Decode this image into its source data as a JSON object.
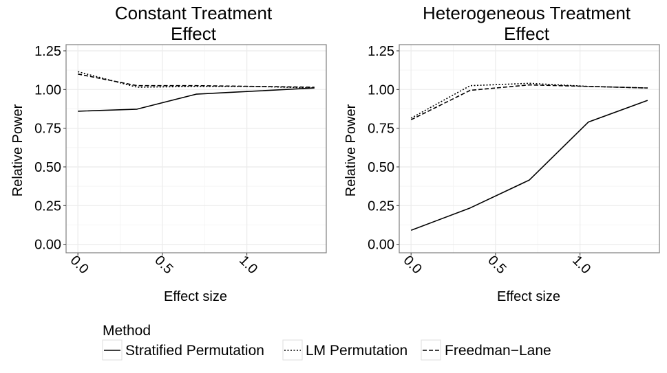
{
  "chart_data": [
    {
      "type": "line",
      "title_lines": [
        "Constant Treatment",
        "Effect"
      ],
      "xlabel": "Effect size",
      "ylabel": "Relative Power",
      "xlim": [
        -0.07,
        1.47
      ],
      "ylim": [
        -0.055,
        1.29
      ],
      "x_ticks": [
        0.0,
        0.5,
        1.0
      ],
      "x_tick_labels": [
        "0.0",
        "0.5",
        "1.0"
      ],
      "y_ticks": [
        0.0,
        0.25,
        0.5,
        0.75,
        1.0,
        1.25
      ],
      "y_tick_labels": [
        "0.00",
        "0.25",
        "0.50",
        "0.75",
        "1.00",
        "1.25"
      ],
      "grid": true,
      "series": [
        {
          "name": "Stratified Permutation",
          "linetype": "solid",
          "x": [
            0.0,
            0.35,
            0.7,
            1.05,
            1.4
          ],
          "values": [
            0.86,
            0.873,
            0.97,
            0.99,
            1.01
          ]
        },
        {
          "name": "LM Permutation",
          "linetype": "dotted",
          "x": [
            0.0,
            0.35,
            0.7,
            1.05,
            1.4
          ],
          "values": [
            1.115,
            1.015,
            1.02,
            1.02,
            1.01
          ]
        },
        {
          "name": "Freedman-Lane",
          "linetype": "dashed",
          "x": [
            0.0,
            0.35,
            0.7,
            1.05,
            1.4
          ],
          "values": [
            1.1,
            1.025,
            1.025,
            1.02,
            1.015
          ]
        }
      ]
    },
    {
      "type": "line",
      "title_lines": [
        "Heterogeneous Treatment",
        "Effect"
      ],
      "xlabel": "Effect size",
      "ylabel": "Relative Power",
      "xlim": [
        -0.07,
        1.47
      ],
      "ylim": [
        -0.055,
        1.29
      ],
      "x_ticks": [
        0.0,
        0.5,
        1.0
      ],
      "x_tick_labels": [
        "0.0",
        "0.5",
        "1.0"
      ],
      "y_ticks": [
        0.0,
        0.25,
        0.5,
        0.75,
        1.0,
        1.25
      ],
      "y_tick_labels": [
        "0.00",
        "0.25",
        "0.50",
        "0.75",
        "1.00",
        "1.25"
      ],
      "grid": true,
      "series": [
        {
          "name": "Stratified Permutation",
          "linetype": "solid",
          "x": [
            0.0,
            0.35,
            0.7,
            1.05,
            1.4
          ],
          "values": [
            0.09,
            0.235,
            0.415,
            0.79,
            0.93
          ]
        },
        {
          "name": "LM Permutation",
          "linetype": "dotted",
          "x": [
            0.0,
            0.35,
            0.7,
            1.05,
            1.4
          ],
          "values": [
            0.815,
            1.025,
            1.04,
            1.02,
            1.01
          ]
        },
        {
          "name": "Freedman-Lane",
          "linetype": "dashed",
          "x": [
            0.0,
            0.35,
            0.7,
            1.05,
            1.4
          ],
          "values": [
            0.805,
            0.995,
            1.03,
            1.02,
            1.01
          ]
        }
      ]
    }
  ],
  "legend": {
    "title": "Method",
    "placement": "bottom",
    "entries": [
      {
        "label": "Stratified Permutation",
        "linetype": "solid"
      },
      {
        "label": "LM Permutation",
        "linetype": "dotted"
      },
      {
        "label": "Freedman−Lane",
        "linetype": "dashed"
      }
    ]
  },
  "colors": {
    "line": "#000000",
    "panel_border": "#7f7f7f",
    "grid_major": "#ebebeb",
    "grid_minor": "#f5f5f5",
    "background": "#ffffff"
  }
}
